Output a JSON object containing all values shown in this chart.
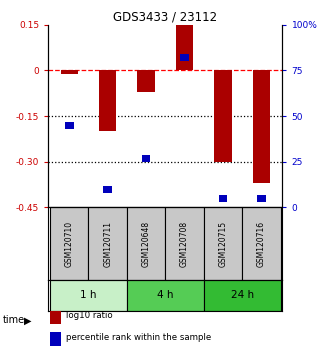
{
  "title": "GDS3433 / 23112",
  "samples": [
    "GSM120710",
    "GSM120711",
    "GSM120648",
    "GSM120708",
    "GSM120715",
    "GSM120716"
  ],
  "log10_ratio": [
    -0.01,
    -0.2,
    -0.07,
    0.15,
    -0.3,
    -0.37
  ],
  "percentile_rank": [
    45,
    10,
    27,
    82,
    5,
    5
  ],
  "ylim_left": [
    -0.45,
    0.15
  ],
  "ylim_right": [
    0,
    100
  ],
  "yticks_left": [
    0.15,
    0,
    -0.15,
    -0.3,
    -0.45
  ],
  "yticks_right": [
    100,
    75,
    50,
    25,
    0
  ],
  "ytick_labels_left": [
    "0.15",
    "0",
    "-0.15",
    "-0.30",
    "-0.45"
  ],
  "ytick_labels_right": [
    "100%",
    "75",
    "50",
    "25",
    "0"
  ],
  "hlines": [
    0,
    -0.15,
    -0.3
  ],
  "hline_styles": [
    "dashed",
    "dotted",
    "dotted"
  ],
  "hline_colors": [
    "red",
    "black",
    "black"
  ],
  "time_groups": [
    {
      "label": "1 h",
      "start": 0,
      "end": 2,
      "color": "#c8f0c8"
    },
    {
      "label": "4 h",
      "start": 2,
      "end": 4,
      "color": "#55cc55"
    },
    {
      "label": "24 h",
      "start": 4,
      "end": 6,
      "color": "#33bb33"
    }
  ],
  "bar_color": "#aa0000",
  "square_color": "#0000bb",
  "bar_width": 0.45,
  "legend": [
    {
      "label": "log10 ratio",
      "color": "#aa0000"
    },
    {
      "label": "percentile rank within the sample",
      "color": "#0000bb"
    }
  ],
  "title_color": "black",
  "left_tick_color": "#cc0000",
  "right_tick_color": "#0000cc",
  "sample_label_bg": "#c8c8c8",
  "bg_color": "#f0f0f0"
}
